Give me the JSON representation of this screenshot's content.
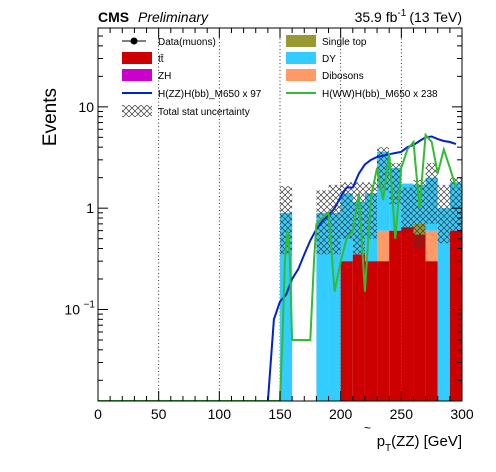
{
  "header": {
    "experiment": "CMS",
    "status": "Preliminary",
    "lumi_value": "35.9 fb",
    "lumi_exp": "-1",
    "energy": "(13 TeV)"
  },
  "chart_data": {
    "type": "bar",
    "xlabel": "p̃_T(ZZ) [GeV]",
    "xlabel_main": "p",
    "xlabel_sub": "T",
    "xlabel_rest": "(ZZ) [GeV]",
    "ylabel": "Events",
    "xlim": [
      0,
      300
    ],
    "ylim": [
      0.0125,
      60
    ],
    "yscale": "log",
    "bin_width": 10,
    "x_ticks": [
      "0",
      "50",
      "100",
      "150",
      "200",
      "250",
      "300"
    ],
    "y_ticks": [
      {
        "value": 0.1,
        "base": "10",
        "exp": "−1"
      },
      {
        "value": 1,
        "base": "1",
        "exp": ""
      },
      {
        "value": 10,
        "base": "10",
        "exp": ""
      }
    ],
    "grid": "vertical dotted",
    "legend_position": "top",
    "legend": [
      {
        "key": "data",
        "label": "Data(muons)",
        "color": "#000000"
      },
      {
        "key": "singletop",
        "label": "Single top",
        "color": "#999933"
      },
      {
        "key": "ttbar",
        "label": "tt̄",
        "color": "#cc0000"
      },
      {
        "key": "dy",
        "label": "DY",
        "color": "#33ccff"
      },
      {
        "key": "zh",
        "label": "ZH",
        "color": "#cc00cc"
      },
      {
        "key": "diboson",
        "label": "Dibosons",
        "color": "#ff9966"
      },
      {
        "key": "sig_zz",
        "label": "H(ZZ)H(bb)_M650 x 97",
        "color": "#0022cc"
      },
      {
        "key": "sig_ww",
        "label": "H(WW)H(bb)_M650 x 238",
        "color": "#33bb33"
      },
      {
        "key": "unc",
        "label": "Total stat uncertainty",
        "color": "#555555"
      }
    ],
    "stack_bins": [
      {
        "x0": 150,
        "x1": 160,
        "dy": 0.9,
        "ttbar": 0,
        "singletop": 0,
        "diboson": 0,
        "unc_lo": 0.35,
        "unc_hi": 1.65
      },
      {
        "x0": 180,
        "x1": 190,
        "dy": 0.9,
        "ttbar": 0,
        "singletop": 0,
        "diboson": 0,
        "unc_lo": 0.35,
        "unc_hi": 1.5
      },
      {
        "x0": 190,
        "x1": 200,
        "dy": 0.9,
        "ttbar": 0,
        "singletop": 0,
        "diboson": 0,
        "unc_lo": 0.35,
        "unc_hi": 1.7
      },
      {
        "x0": 200,
        "x1": 210,
        "dy": 1.1,
        "ttbar": 0.3,
        "singletop": 0,
        "diboson": 0,
        "unc_lo": 0.5,
        "unc_hi": 1.8
      },
      {
        "x0": 210,
        "x1": 220,
        "dy": 0.8,
        "ttbar": 0.35,
        "singletop": 0,
        "diboson": 0,
        "unc_lo": 0.35,
        "unc_hi": 1.8
      },
      {
        "x0": 220,
        "x1": 230,
        "dy": 1.1,
        "ttbar": 0.3,
        "singletop": 0,
        "diboson": 0,
        "unc_lo": 0.5,
        "unc_hi": 1.8
      },
      {
        "x0": 230,
        "x1": 240,
        "dy": 3.0,
        "ttbar": 0.3,
        "singletop": 0,
        "diboson": 0.3,
        "unc_lo": 1.5,
        "unc_hi": 4.0
      },
      {
        "x0": 240,
        "x1": 250,
        "dy": 1.9,
        "ttbar": 0.6,
        "singletop": 0,
        "diboson": 0,
        "unc_lo": 1.1,
        "unc_hi": 2.8
      },
      {
        "x0": 250,
        "x1": 260,
        "dy": 1.1,
        "ttbar": 0.65,
        "singletop": 0,
        "diboson": 0,
        "unc_lo": 0.6,
        "unc_hi": 1.6
      },
      {
        "x0": 260,
        "x1": 270,
        "dy": 1.0,
        "ttbar": 0.55,
        "singletop": 0.15,
        "diboson": 0,
        "unc_lo": 0.4,
        "unc_hi": 1.9
      },
      {
        "x0": 270,
        "x1": 280,
        "dy": 1.4,
        "ttbar": 0.3,
        "singletop": 0,
        "diboson": 0.3,
        "unc_lo": 0.7,
        "unc_hi": 2.8
      },
      {
        "x0": 280,
        "x1": 290,
        "dy": 1.0,
        "ttbar": 0,
        "singletop": 0,
        "diboson": 0,
        "unc_lo": 0.45,
        "unc_hi": 1.7
      },
      {
        "x0": 290,
        "x1": 300,
        "dy": 1.2,
        "ttbar": 0.6,
        "singletop": 0,
        "diboson": 0,
        "unc_lo": 0.6,
        "unc_hi": 2.0
      }
    ],
    "signal_zz": {
      "x": [
        0,
        140,
        145,
        150,
        155,
        160,
        165,
        170,
        175,
        180,
        185,
        190,
        195,
        200,
        205,
        210,
        215,
        220,
        225,
        230,
        235,
        240,
        245,
        250,
        255,
        260,
        265,
        270,
        275,
        280,
        285,
        290,
        295
      ],
      "y": [
        0,
        0,
        0.08,
        0.12,
        0.14,
        0.2,
        0.25,
        0.35,
        0.48,
        0.62,
        0.75,
        0.85,
        1.0,
        1.3,
        1.6,
        1.6,
        2.2,
        2.7,
        3.0,
        3.2,
        3.3,
        3.4,
        3.5,
        3.6,
        4.0,
        4.2,
        4.6,
        5.0,
        5.1,
        4.8,
        4.6,
        4.5,
        4.3
      ]
    },
    "signal_ww": {
      "x": [
        0,
        150,
        152,
        154,
        156,
        158,
        160,
        175,
        178,
        180,
        185,
        190,
        195,
        200,
        205,
        210,
        215,
        220,
        225,
        230,
        235,
        240,
        245,
        250,
        255,
        260,
        265,
        270,
        275,
        280,
        285,
        290,
        295
      ],
      "y": [
        0,
        0,
        0.05,
        0.3,
        0.6,
        0.35,
        0.05,
        0.05,
        0.3,
        0.7,
        0.8,
        0.9,
        0.15,
        0.3,
        0.5,
        0.6,
        1.4,
        0.15,
        1.3,
        2.5,
        1.2,
        3.5,
        0.5,
        2.5,
        3.8,
        4.5,
        1.0,
        5.3,
        4.5,
        2.2,
        3.8,
        2.5,
        1.6
      ]
    }
  }
}
